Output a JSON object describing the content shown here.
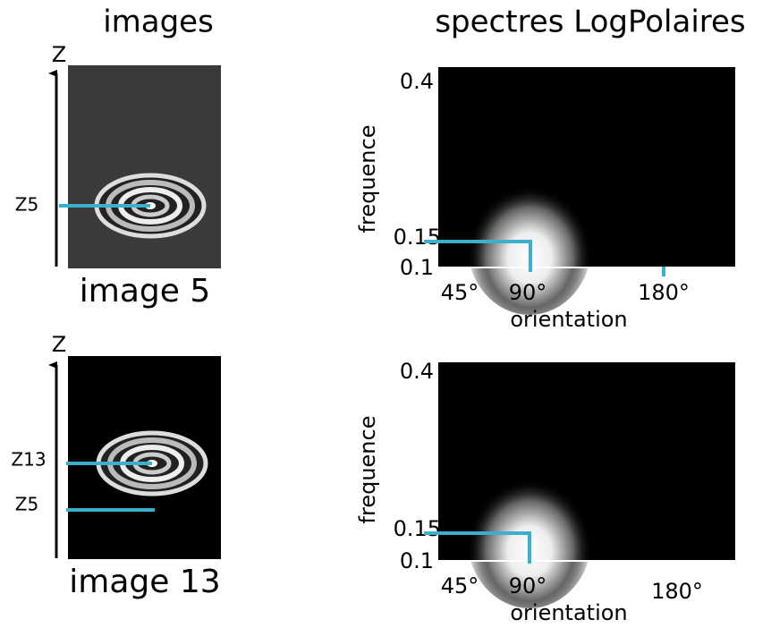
{
  "headers": {
    "images": "images",
    "spectra": "spectres LogPolaires"
  },
  "rows": [
    {
      "image": {
        "axis": "Z",
        "markers": [
          "Z5"
        ],
        "caption": "image 5"
      },
      "spectrum": {
        "y_label": "frequence",
        "y_ticks": [
          "0.4",
          "0.15",
          "0.1"
        ],
        "x_ticks": [
          "45°",
          "90°",
          "180°"
        ],
        "x_label": "orientation"
      }
    },
    {
      "image": {
        "axis": "Z",
        "markers": [
          "Z13",
          "Z5"
        ],
        "caption": "image 13"
      },
      "spectrum": {
        "y_label": "frequence",
        "y_ticks": [
          "0.4",
          "0.15",
          "0.1"
        ],
        "x_ticks": [
          "45°",
          "90°",
          "180°"
        ],
        "x_label": "orientation"
      }
    }
  ]
}
